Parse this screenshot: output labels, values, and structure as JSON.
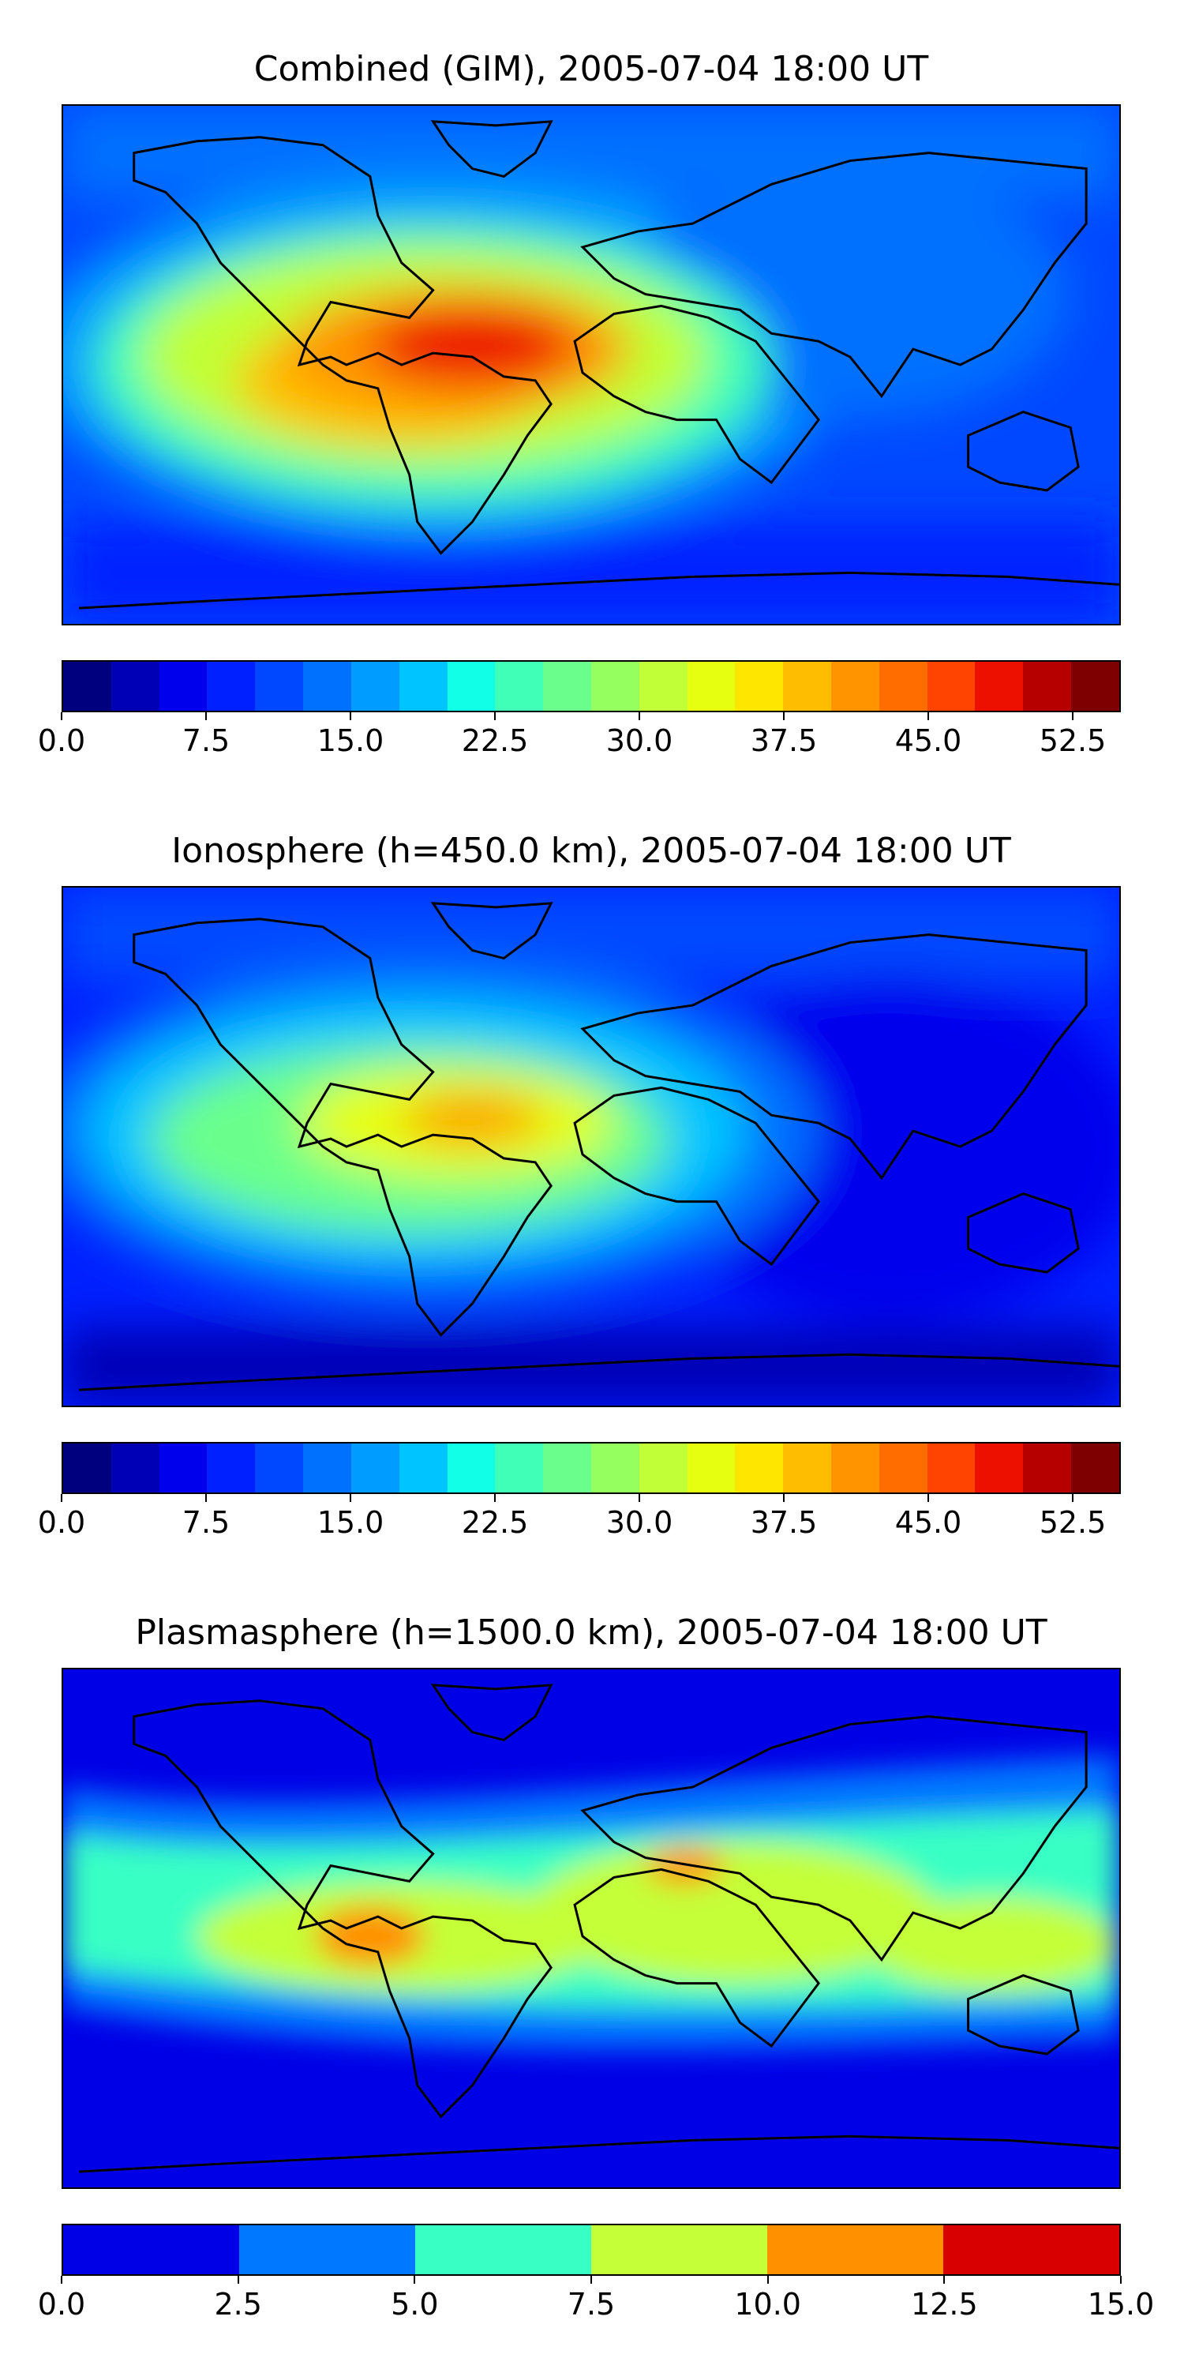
{
  "panels": [
    {
      "title": "Combined (GIM), 2005-07-04 18:00 UT",
      "colorbar": {
        "min": 0,
        "max": 55,
        "colors": [
          "#00007f",
          "#0000b6",
          "#0000ed",
          "#0020ff",
          "#0048ff",
          "#0070ff",
          "#009cff",
          "#00c4ff",
          "#10ffe6",
          "#40ffb6",
          "#6aff8c",
          "#96ff60",
          "#c1ff36",
          "#e6ff10",
          "#ffe600",
          "#ffbd00",
          "#ff9400",
          "#ff6c00",
          "#ff4300",
          "#ed0f00",
          "#b60000",
          "#7f0000"
        ],
        "ticks": [
          "0.0",
          "7.5",
          "15.0",
          "22.5",
          "30.0",
          "37.5",
          "45.0",
          "52.5"
        ],
        "tick_values": [
          0,
          7.5,
          15,
          22.5,
          30,
          37.5,
          45,
          52.5
        ]
      }
    },
    {
      "title": "Ionosphere  (h=450.0 km), 2005-07-04 18:00 UT",
      "colorbar": {
        "min": 0,
        "max": 55,
        "colors": [
          "#00007f",
          "#0000b6",
          "#0000ed",
          "#0020ff",
          "#0048ff",
          "#0070ff",
          "#009cff",
          "#00c4ff",
          "#10ffe6",
          "#40ffb6",
          "#6aff8c",
          "#96ff60",
          "#c1ff36",
          "#e6ff10",
          "#ffe600",
          "#ffbd00",
          "#ff9400",
          "#ff6c00",
          "#ff4300",
          "#ed0f00",
          "#b60000",
          "#7f0000"
        ],
        "ticks": [
          "0.0",
          "7.5",
          "15.0",
          "22.5",
          "30.0",
          "37.5",
          "45.0",
          "52.5"
        ],
        "tick_values": [
          0,
          7.5,
          15,
          22.5,
          30,
          37.5,
          45,
          52.5
        ]
      }
    },
    {
      "title": "Plasmasphere (h=1500.0 km), 2005-07-04 18:00 UT",
      "colorbar": {
        "min": 0,
        "max": 15,
        "colors": [
          "#0000e6",
          "#0078ff",
          "#38ffc4",
          "#c4ff38",
          "#ff9000",
          "#d80000"
        ],
        "ticks": [
          "0.0",
          "2.5",
          "5.0",
          "7.5",
          "10.0",
          "12.5",
          "15.0"
        ],
        "tick_values": [
          0,
          2.5,
          5,
          7.5,
          10,
          12.5,
          15
        ]
      }
    }
  ]
}
